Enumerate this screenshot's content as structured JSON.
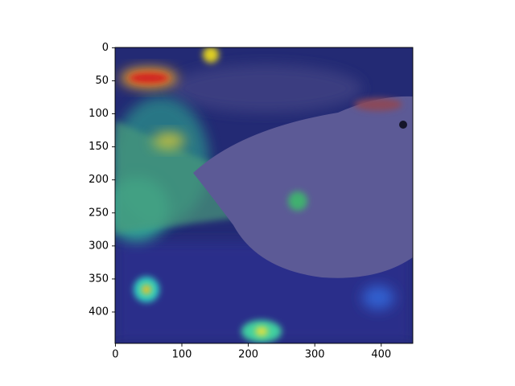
{
  "chart_data": {
    "type": "image",
    "xlim": [
      -0.5,
      447.5
    ],
    "ylim": [
      447.5,
      -0.5
    ],
    "xticks": [
      0,
      100,
      200,
      300,
      400
    ],
    "yticks": [
      0,
      50,
      100,
      150,
      200,
      250,
      300,
      350,
      400
    ]
  }
}
